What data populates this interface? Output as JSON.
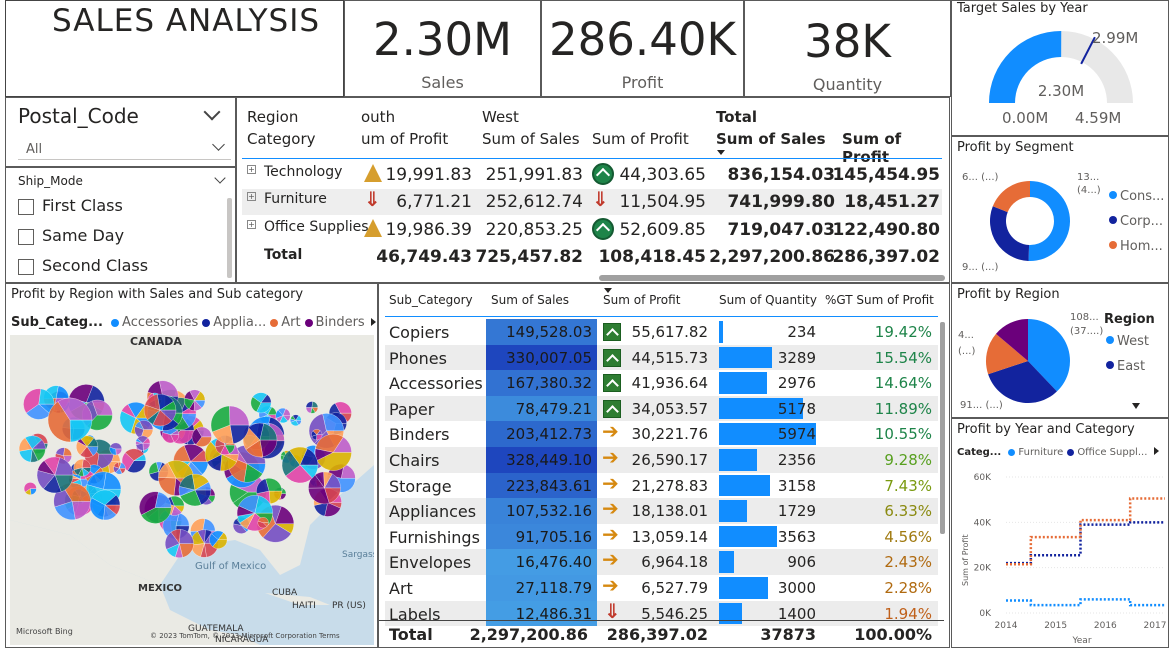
{
  "title": "SALES ANALYSIS",
  "kpis": [
    {
      "value": "2.30M",
      "label": "Sales"
    },
    {
      "value": "286.40K",
      "label": "Profit"
    },
    {
      "value": "38K",
      "label": "Quantity"
    }
  ],
  "postal_slicer": {
    "title": "Postal_Code",
    "value": "All"
  },
  "ship_slicer": {
    "title": "Ship_Mode",
    "items": [
      "First Class",
      "Same Day",
      "Second Class"
    ]
  },
  "matrix": {
    "header_row1": [
      "Region",
      "outh",
      "West",
      "",
      "Total",
      ""
    ],
    "header_row2": [
      "Category",
      "um of Profit",
      "Sum of Sales",
      "Sum of Profit",
      "Sum of Sales",
      "Sum of Profit"
    ],
    "rows": [
      {
        "cat": "Technology",
        "south_profit": "19,991.83",
        "west_sales": "251,991.83",
        "west_profit": "44,303.65",
        "total_sales": "836,154.03",
        "total_profit": "145,454.95"
      },
      {
        "cat": "Furniture",
        "south_profit": "6,771.21",
        "west_sales": "252,612.74",
        "west_profit": "11,504.95",
        "total_sales": "741,999.80",
        "total_profit": "18,451.27"
      },
      {
        "cat": "Office Supplies",
        "south_profit": "19,986.39",
        "west_sales": "220,853.25",
        "west_profit": "52,609.85",
        "total_sales": "719,047.03",
        "total_profit": "122,490.80"
      }
    ],
    "total": {
      "label": "Total",
      "south_profit": "46,749.43",
      "west_sales": "725,457.82",
      "west_profit": "108,418.45",
      "total_sales": "2,297,200.86",
      "total_profit": "286,397.02"
    }
  },
  "map": {
    "title": "Profit by Region with Sales and Sub category",
    "legend_label": "Sub_Categ...",
    "legend": [
      {
        "name": "Accessories",
        "color": "#118dff"
      },
      {
        "name": "Applia...",
        "color": "#12239e"
      },
      {
        "name": "Art",
        "color": "#e66c37"
      },
      {
        "name": "Binders",
        "color": "#6b007b"
      }
    ],
    "labels": {
      "canada": "CANADA",
      "mexico": "MEXICO",
      "gulf": "Gulf of Mexico",
      "cuba": "CUBA",
      "haiti": "HAITI",
      "pr": "PR (US)",
      "guatemala": "GUATEMALA",
      "nicaragua": "NICARAGUA",
      "sargasso": "Sargass"
    },
    "bing": "Microsoft Bing",
    "copyright": "© 2023 TomTom, © 2023 Microsoft Corporation Terms"
  },
  "subcat": {
    "headers": [
      "Sub_Category",
      "Sum of Sales",
      "Sum of Profit",
      "Sum of Quantity",
      "%GT Sum of Profit"
    ],
    "rows": [
      {
        "name": "Copiers",
        "sales": "149,528.03",
        "sales_v": 149528,
        "profit": "55,617.82",
        "icon": "sq",
        "qty": "234",
        "qty_v": 234,
        "pct": "19.42%",
        "pct_color": "#1e8449"
      },
      {
        "name": "Phones",
        "sales": "330,007.05",
        "sales_v": 330007,
        "profit": "44,515.73",
        "icon": "sq",
        "qty": "3289",
        "qty_v": 3289,
        "pct": "15.54%",
        "pct_color": "#1e8449"
      },
      {
        "name": "Accessories",
        "sales": "167,380.32",
        "sales_v": 167380,
        "profit": "41,936.64",
        "icon": "sq",
        "qty": "2976",
        "qty_v": 2976,
        "pct": "14.64%",
        "pct_color": "#1e8449"
      },
      {
        "name": "Paper",
        "sales": "78,479.21",
        "sales_v": 78479,
        "profit": "34,053.57",
        "icon": "sq",
        "qty": "5178",
        "qty_v": 5178,
        "pct": "11.89%",
        "pct_color": "#1e8449"
      },
      {
        "name": "Binders",
        "sales": "203,412.73",
        "sales_v": 203413,
        "profit": "30,221.76",
        "icon": "arr",
        "qty": "5974",
        "qty_v": 5974,
        "pct": "10.55%",
        "pct_color": "#1e8449"
      },
      {
        "name": "Chairs",
        "sales": "328,449.10",
        "sales_v": 328449,
        "profit": "26,590.17",
        "icon": "arr",
        "qty": "2356",
        "qty_v": 2356,
        "pct": "9.28%",
        "pct_color": "#58a020"
      },
      {
        "name": "Storage",
        "sales": "223,843.61",
        "sales_v": 223844,
        "profit": "21,278.83",
        "icon": "arr",
        "qty": "3158",
        "qty_v": 3158,
        "pct": "7.43%",
        "pct_color": "#7a9a10"
      },
      {
        "name": "Appliances",
        "sales": "107,532.16",
        "sales_v": 107532,
        "profit": "18,138.01",
        "icon": "arr",
        "qty": "1729",
        "qty_v": 1729,
        "pct": "6.33%",
        "pct_color": "#8a8a10"
      },
      {
        "name": "Furnishings",
        "sales": "91,705.16",
        "sales_v": 91705,
        "profit": "13,059.14",
        "icon": "arr",
        "qty": "3563",
        "qty_v": 3563,
        "pct": "4.56%",
        "pct_color": "#a07a10"
      },
      {
        "name": "Envelopes",
        "sales": "16,476.40",
        "sales_v": 16476,
        "profit": "6,964.18",
        "icon": "arr",
        "qty": "906",
        "qty_v": 906,
        "pct": "2.43%",
        "pct_color": "#b06a10"
      },
      {
        "name": "Art",
        "sales": "27,118.79",
        "sales_v": 27119,
        "profit": "6,527.79",
        "icon": "arr",
        "qty": "3000",
        "qty_v": 3000,
        "pct": "2.28%",
        "pct_color": "#b06a10"
      },
      {
        "name": "Labels",
        "sales": "12,486.31",
        "sales_v": 12486,
        "profit": "5,546.25",
        "icon": "dn",
        "qty": "1400",
        "qty_v": 1400,
        "pct": "1.94%",
        "pct_color": "#c0601a"
      }
    ],
    "total": {
      "name": "Total",
      "sales": "2,297,200.86",
      "profit": "286,397.02",
      "qty": "37873",
      "pct": "100.00%"
    }
  },
  "gauge": {
    "title": "Target Sales by Year",
    "value": 2.3,
    "target": 2.99,
    "min": 0,
    "max": 4.59,
    "value_label": "2.30M",
    "target_label": "2.99M",
    "min_label": "0.00M",
    "max_label": "4.59M"
  },
  "segment": {
    "title": "Profit by Segment",
    "labels": {
      "a": "6... (...)",
      "b": "13...",
      "b2": "(4...)",
      "c": "9... (...)"
    },
    "legend": [
      {
        "name": "Cons...",
        "color": "#118dff"
      },
      {
        "name": "Corp...",
        "color": "#12239e"
      },
      {
        "name": "Hom...",
        "color": "#e66c37"
      }
    ],
    "values": [
      50.6,
      30.4,
      19.0
    ]
  },
  "region": {
    "title": "Profit by Region",
    "legend_title": "Region",
    "labels": {
      "a": "108...",
      "a2": "(37....)",
      "b": "4...",
      "b2": "(...)",
      "c": "91... (...)"
    },
    "legend": [
      {
        "name": "West",
        "color": "#118dff"
      },
      {
        "name": "East",
        "color": "#12239e"
      }
    ],
    "values": [
      37.9,
      32.0,
      16.3,
      13.8
    ],
    "colors": [
      "#118dff",
      "#12239e",
      "#e66c37",
      "#6b007b"
    ]
  },
  "yearcat": {
    "title": "Profit by Year and Category",
    "legend_label": "Categ...",
    "legend": [
      {
        "name": "Furniture",
        "color": "#118dff"
      },
      {
        "name": "Office Suppl...",
        "color": "#12239e"
      }
    ],
    "xlabel": "Year",
    "ylabel": "Sum of Profit",
    "yticks": [
      "60K",
      "40K",
      "20K",
      "0K"
    ],
    "xticks": [
      "2014",
      "2015",
      "2016",
      "2017"
    ]
  },
  "chart_data": {
    "type": "line",
    "title": "Profit by Year and Category",
    "xlabel": "Year",
    "ylabel": "Sum of Profit",
    "x": [
      2014,
      2015,
      2016,
      2017
    ],
    "ylim": [
      0,
      60000
    ],
    "series": [
      {
        "name": "Furniture",
        "values": [
          5500,
          3500,
          6000,
          3500
        ]
      },
      {
        "name": "Office Suppl...",
        "values": [
          22000,
          25500,
          39000,
          40000
        ]
      },
      {
        "name": "",
        "values": [
          21500,
          33500,
          41000,
          50500
        ]
      }
    ]
  }
}
